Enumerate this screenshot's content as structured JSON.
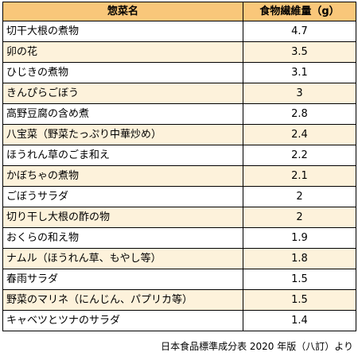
{
  "table": {
    "headers": {
      "dish": "惣菜名",
      "fiber": "食物繊維量（g）"
    },
    "rows": [
      {
        "dish": "切干大根の煮物",
        "fiber": "4.7"
      },
      {
        "dish": "卯の花",
        "fiber": "3.5"
      },
      {
        "dish": "ひじきの煮物",
        "fiber": "3.1"
      },
      {
        "dish": "きんぴらごぼう",
        "fiber": "3"
      },
      {
        "dish": "高野豆腐の含め煮",
        "fiber": "2.8"
      },
      {
        "dish": "八宝菜（野菜たっぷり中華炒め）",
        "fiber": "2.4"
      },
      {
        "dish": "ほうれん草のごま和え",
        "fiber": "2.2"
      },
      {
        "dish": "かぼちゃの煮物",
        "fiber": "2.1"
      },
      {
        "dish": "ごぼうサラダ",
        "fiber": "2"
      },
      {
        "dish": "切り干し大根の酢の物",
        "fiber": "2"
      },
      {
        "dish": "おくらの和え物",
        "fiber": "1.9"
      },
      {
        "dish": "ナムル（ほうれん草、もやし等）",
        "fiber": "1.8"
      },
      {
        "dish": "春雨サラダ",
        "fiber": "1.5"
      },
      {
        "dish": "野菜のマリネ（にんじん、パプリカ等）",
        "fiber": "1.5"
      },
      {
        "dish": "キャベツとツナのサラダ",
        "fiber": "1.4"
      }
    ]
  },
  "source_note": "日本食品標準成分表 2020 年版（八訂）より",
  "colors": {
    "header_bg": "#f9c77a",
    "stripe_bg": "#fdf2db",
    "border": "#000000"
  }
}
